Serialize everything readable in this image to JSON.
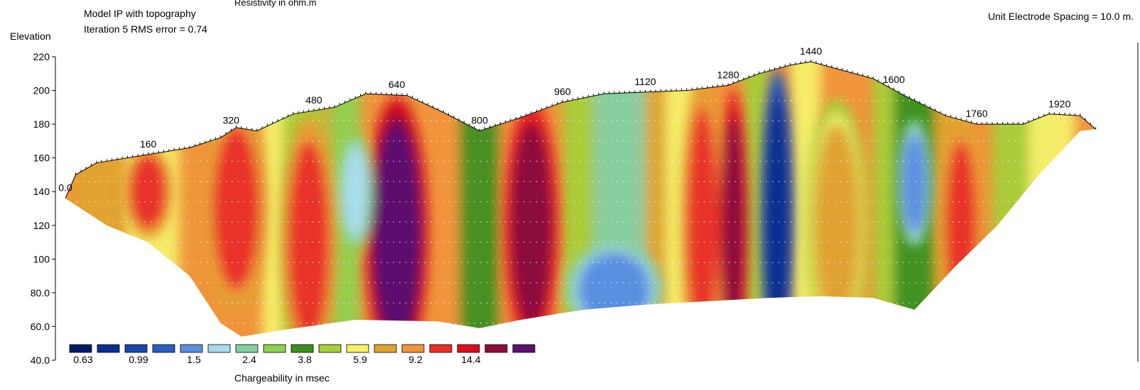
{
  "header": {
    "top_label": "Resistivity in ohm.m",
    "model_title": "Model IP with topography",
    "iteration_text": "Iteration 5 RMS error = 0.74",
    "electrode_spacing": "Unit Electrode Spacing = 10.0 m."
  },
  "chart_data": {
    "type": "heatmap",
    "title": "Model IP with topography",
    "subtitle": "Iteration 5 RMS error = 0.74",
    "xlabel": "",
    "ylabel": "Elevation",
    "colorbar_label": "Chargeability in msec",
    "x_range": [
      0,
      2000
    ],
    "y_range": [
      40,
      220
    ],
    "x_tick_labels": [
      {
        "x": 0,
        "label": "0.0"
      },
      {
        "x": 160,
        "label": "160"
      },
      {
        "x": 320,
        "label": "320"
      },
      {
        "x": 480,
        "label": "480"
      },
      {
        "x": 640,
        "label": "640"
      },
      {
        "x": 800,
        "label": "800"
      },
      {
        "x": 960,
        "label": "960"
      },
      {
        "x": 1120,
        "label": "1120"
      },
      {
        "x": 1280,
        "label": "1280"
      },
      {
        "x": 1440,
        "label": "1440"
      },
      {
        "x": 1600,
        "label": "1600"
      },
      {
        "x": 1760,
        "label": "1760"
      },
      {
        "x": 1920,
        "label": "1920"
      }
    ],
    "y_ticks": [
      220,
      200,
      180,
      160,
      140,
      120,
      100,
      80,
      60,
      40
    ],
    "y_tick_labels": [
      "220",
      "200",
      "180",
      "160",
      "140",
      "120",
      "100",
      "80.0",
      "60.0",
      "40.0"
    ],
    "colorbar_colors": [
      "#001a66",
      "#0b2f8f",
      "#1a47a8",
      "#2a5fbf",
      "#5a8fe0",
      "#a8dcea",
      "#86cfa3",
      "#8fd14f",
      "#3e8f22",
      "#a6cf3a",
      "#f5f06a",
      "#e0a330",
      "#f0953b",
      "#e8302a",
      "#d8101e",
      "#8a0f3c",
      "#5c0f6e"
    ],
    "colorbar_labels": [
      "0.63",
      "0.99",
      "1.5",
      "2.4",
      "3.8",
      "5.9",
      "9.2",
      "14.4"
    ],
    "surface_profile": [
      [
        0,
        136
      ],
      [
        20,
        150
      ],
      [
        60,
        157
      ],
      [
        160,
        162
      ],
      [
        240,
        166
      ],
      [
        300,
        172
      ],
      [
        330,
        178
      ],
      [
        370,
        176
      ],
      [
        440,
        186
      ],
      [
        520,
        190
      ],
      [
        580,
        198
      ],
      [
        660,
        197
      ],
      [
        730,
        187
      ],
      [
        800,
        176
      ],
      [
        880,
        184
      ],
      [
        960,
        193
      ],
      [
        1040,
        198
      ],
      [
        1120,
        199
      ],
      [
        1200,
        200
      ],
      [
        1280,
        203
      ],
      [
        1340,
        210
      ],
      [
        1400,
        215
      ],
      [
        1440,
        217
      ],
      [
        1500,
        212
      ],
      [
        1560,
        207
      ],
      [
        1620,
        197
      ],
      [
        1700,
        185
      ],
      [
        1760,
        180
      ],
      [
        1850,
        180
      ],
      [
        1900,
        186
      ],
      [
        1960,
        185
      ],
      [
        1990,
        177
      ]
    ],
    "base_profile": [
      [
        0,
        136
      ],
      [
        80,
        120
      ],
      [
        160,
        110
      ],
      [
        240,
        90
      ],
      [
        300,
        62
      ],
      [
        340,
        54
      ],
      [
        420,
        58
      ],
      [
        560,
        64
      ],
      [
        720,
        63
      ],
      [
        800,
        59
      ],
      [
        880,
        64
      ],
      [
        1000,
        70
      ],
      [
        1120,
        73
      ],
      [
        1240,
        75
      ],
      [
        1360,
        77
      ],
      [
        1460,
        78
      ],
      [
        1560,
        77
      ],
      [
        1640,
        70
      ],
      [
        1720,
        96
      ],
      [
        1800,
        120
      ],
      [
        1880,
        150
      ],
      [
        1960,
        176
      ],
      [
        1990,
        177
      ]
    ],
    "anomalies": [
      {
        "cx": 330,
        "cy": 130,
        "rx": 45,
        "ry": 48,
        "value_level": 13
      },
      {
        "cx": 470,
        "cy": 110,
        "rx": 40,
        "ry": 60,
        "value_level": 13
      },
      {
        "cx": 640,
        "cy": 115,
        "rx": 45,
        "ry": 65,
        "value_level": 16
      },
      {
        "cx": 560,
        "cy": 140,
        "rx": 25,
        "ry": 28,
        "value_level": 5
      },
      {
        "cx": 900,
        "cy": 120,
        "rx": 40,
        "ry": 60,
        "value_level": 15
      },
      {
        "cx": 1060,
        "cy": 82,
        "rx": 70,
        "ry": 22,
        "value_level": 4
      },
      {
        "cx": 1230,
        "cy": 120,
        "rx": 30,
        "ry": 70,
        "value_level": 13
      },
      {
        "cx": 1290,
        "cy": 120,
        "rx": 22,
        "ry": 65,
        "value_level": 15
      },
      {
        "cx": 1375,
        "cy": 125,
        "rx": 24,
        "ry": 70,
        "value_level": 1
      },
      {
        "cx": 1490,
        "cy": 120,
        "rx": 45,
        "ry": 60,
        "value_level": 11
      },
      {
        "cx": 1640,
        "cy": 145,
        "rx": 25,
        "ry": 30,
        "value_level": 4
      },
      {
        "cx": 1730,
        "cy": 120,
        "rx": 30,
        "ry": 50,
        "value_level": 13
      },
      {
        "cx": 160,
        "cy": 140,
        "rx": 35,
        "ry": 22,
        "value_level": 13
      }
    ]
  }
}
